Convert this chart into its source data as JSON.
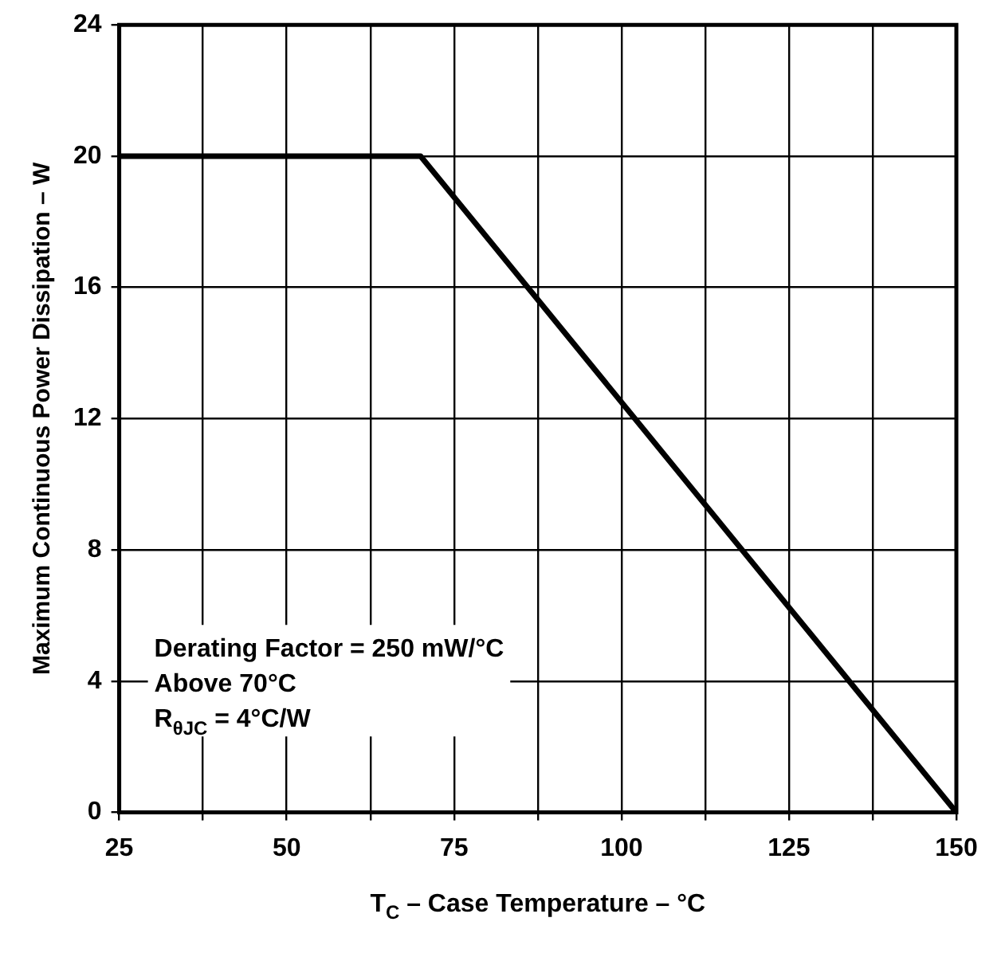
{
  "chart_data": {
    "type": "line",
    "xlabel": "T$_{C}$ – Case Temperature – °C",
    "ylabel": "Maximum Continuous Power Dissipation – W",
    "x": [
      25,
      70,
      150
    ],
    "series": [
      {
        "color": "#000000",
        "values": [
          20,
          20,
          0
        ]
      }
    ],
    "xlim": [
      25,
      150
    ],
    "xticks": [
      25,
      {
        "value": 37.5,
        "label": null
      },
      50,
      {
        "value": 62.5,
        "label": null
      },
      75,
      {
        "value": 87.5,
        "label": null
      },
      100,
      {
        "value": 112.5,
        "label": null
      },
      125,
      {
        "value": 137.5,
        "label": null
      },
      150
    ],
    "ylim": [
      0,
      24
    ],
    "yticks": [
      0,
      4,
      8,
      12,
      16,
      20,
      24
    ],
    "annotations": [
      "Derating Factor = 250 mW/°C",
      "Above 70°C",
      "R$_{θJC}$ = 4°C/W"
    ],
    "grid": true,
    "legend": false,
    "marker": "none",
    "line_style": "solid"
  }
}
